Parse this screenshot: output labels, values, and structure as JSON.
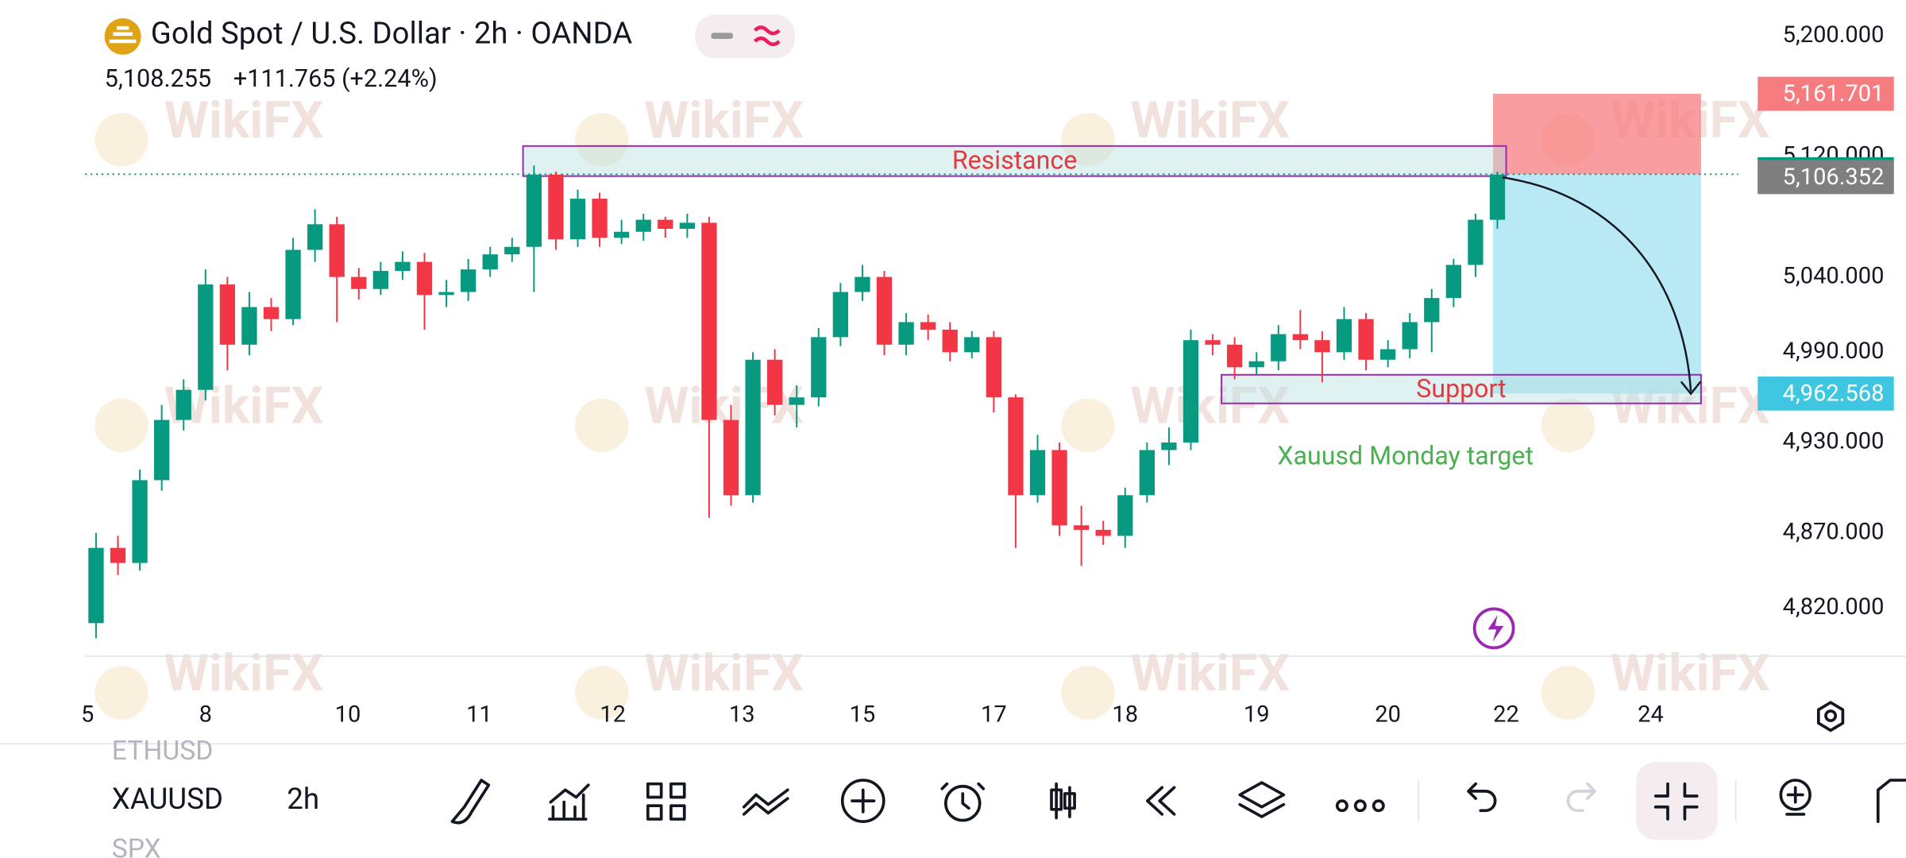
{
  "header": {
    "title": "Gold Spot / U.S. Dollar · 2h · OANDA",
    "price": "5,108.255",
    "change": "+111.765 (+2.24%)"
  },
  "watermark": "WikiFX",
  "chart_data": {
    "type": "candlestick",
    "x": [
      0,
      1,
      2,
      3,
      4,
      5,
      6,
      7,
      8,
      9,
      10,
      11,
      12,
      13,
      14,
      15,
      16,
      17,
      18,
      19,
      20,
      21,
      22,
      23,
      24,
      25,
      26,
      27,
      28,
      29,
      30,
      31,
      32,
      33,
      34,
      35,
      36,
      37,
      38,
      39,
      40,
      41,
      42,
      43,
      44,
      45,
      46,
      47,
      48,
      49,
      50,
      51,
      52,
      53,
      54,
      55,
      56,
      57,
      58,
      59,
      60,
      61,
      62,
      63,
      64
    ],
    "open": [
      4810,
      4860,
      4850,
      4905,
      4945,
      4965,
      5035,
      4995,
      5020,
      5012,
      5058,
      5075,
      5040,
      5032,
      5044,
      5050,
      5028,
      5030,
      5045,
      5055,
      5060,
      5108,
      5065,
      5092,
      5066,
      5070,
      5078,
      5072,
      5076,
      4945,
      4895,
      4985,
      4955,
      4960,
      5000,
      5030,
      5040,
      4995,
      5010,
      5005,
      4990,
      5000,
      4960,
      4895,
      4925,
      4875,
      4872,
      4868,
      4895,
      4925,
      4930,
      4998,
      4995,
      4980,
      4984,
      5002,
      4998,
      4990,
      5012,
      4985,
      4992,
      5010,
      5026,
      5048,
      5078
    ],
    "high": [
      4870,
      4868,
      4912,
      4955,
      4972,
      5045,
      5040,
      5030,
      5026,
      5066,
      5085,
      5080,
      5046,
      5050,
      5057,
      5056,
      5038,
      5052,
      5060,
      5066,
      5114,
      5110,
      5098,
      5096,
      5078,
      5082,
      5080,
      5082,
      5080,
      4955,
      4990,
      4992,
      4968,
      5006,
      5036,
      5048,
      5044,
      5016,
      5015,
      5010,
      5004,
      5004,
      4962,
      4935,
      4930,
      4888,
      4878,
      4900,
      4930,
      4940,
      5005,
      5002,
      5000,
      4990,
      5008,
      5018,
      5004,
      5020,
      5016,
      4998,
      5016,
      5032,
      5052,
      5082,
      5110
    ],
    "low": [
      4800,
      4842,
      4845,
      4898,
      4938,
      4958,
      4978,
      4988,
      5004,
      5008,
      5050,
      5010,
      5025,
      5028,
      5038,
      5005,
      5020,
      5024,
      5040,
      5050,
      5030,
      5058,
      5060,
      5060,
      5062,
      5064,
      5066,
      5066,
      4880,
      4888,
      4890,
      4948,
      4940,
      4954,
      4994,
      5024,
      4988,
      4988,
      4998,
      4984,
      4986,
      4950,
      4860,
      4890,
      4868,
      4848,
      4862,
      4860,
      4890,
      4915,
      4925,
      4988,
      4972,
      4975,
      4978,
      4992,
      4970,
      4985,
      4978,
      4980,
      4986,
      4990,
      5020,
      5040,
      5072
    ],
    "close": [
      4860,
      4850,
      4905,
      4945,
      4965,
      5035,
      4995,
      5020,
      5012,
      5058,
      5075,
      5040,
      5032,
      5044,
      5050,
      5028,
      5030,
      5045,
      5055,
      5060,
      5108,
      5065,
      5092,
      5066,
      5070,
      5078,
      5072,
      5076,
      4945,
      4895,
      4985,
      4955,
      4960,
      5000,
      5030,
      5040,
      4995,
      5010,
      5005,
      4990,
      5000,
      4960,
      4895,
      4925,
      4875,
      4872,
      4868,
      4895,
      4925,
      4930,
      4998,
      4995,
      4980,
      4984,
      5002,
      4998,
      4990,
      5012,
      4985,
      4992,
      5010,
      5026,
      5048,
      5078,
      5108
    ],
    "up_color": "#089981",
    "down_color": "#f23645",
    "xlim": [
      -0.5,
      75
    ],
    "xticks": [
      {
        "value": -0.5,
        "label": "5"
      },
      {
        "value": 5,
        "label": "8"
      },
      {
        "value": 11.5,
        "label": "10"
      },
      {
        "value": 17.5,
        "label": "11"
      },
      {
        "value": 23.6,
        "label": "12"
      },
      {
        "value": 29.5,
        "label": "13"
      },
      {
        "value": 35,
        "label": "15"
      },
      {
        "value": 41,
        "label": "17"
      },
      {
        "value": 47,
        "label": "18"
      },
      {
        "value": 53,
        "label": "19"
      },
      {
        "value": 59,
        "label": "20"
      },
      {
        "value": 64.4,
        "label": "22"
      },
      {
        "value": 71,
        "label": "24"
      }
    ],
    "ylim": [
      4788,
      5224
    ],
    "yticks": [
      {
        "value": 5200,
        "label": "5,200.000"
      },
      {
        "value": 5120,
        "label": "5,120.000"
      },
      {
        "value": 5040,
        "label": "5,040.000"
      },
      {
        "value": 4990,
        "label": "4,990.000"
      },
      {
        "value": 4930,
        "label": "4,930.000"
      },
      {
        "value": 4870,
        "label": "4,870.000"
      },
      {
        "value": 4820,
        "label": "4,820.000"
      }
    ],
    "grid": false,
    "price_labels": [
      {
        "value": 5161.701,
        "label": "5,161.701",
        "color": "#f77c80"
      },
      {
        "value": 5108.255,
        "label": "5,108.255",
        "color": "#089981"
      },
      {
        "value": 5106.352,
        "label": "5,106.352",
        "color": "#7f7f7f"
      },
      {
        "value": 4962.568,
        "label": "4,962.568",
        "color": "#3fc6e0"
      }
    ],
    "zones": [
      {
        "label": "Resistance",
        "x": [
          19.5,
          64.4
        ],
        "y": [
          5107,
          5127
        ]
      },
      {
        "label": "Support",
        "x": [
          51.4,
          73.3
        ],
        "y": [
          4956,
          4975
        ]
      }
    ],
    "position_x": [
      63.8,
      73.3
    ],
    "annotation": {
      "text": "Xauusd Monday target",
      "x": 59.8,
      "y": 4920
    }
  },
  "toolbar": {
    "symbols": [
      "ETHUSD",
      "XAUUSD",
      "SPX"
    ],
    "interval": "2h"
  }
}
